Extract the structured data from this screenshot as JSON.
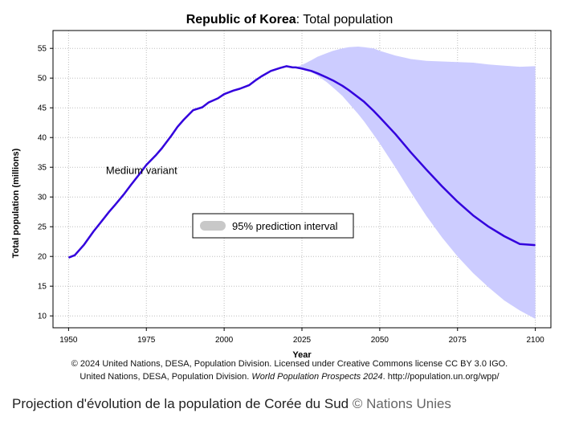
{
  "chart_data": {
    "type": "line",
    "title": {
      "country": "Republic of Korea",
      "rest": ": Total population"
    },
    "xlabel": "Year",
    "ylabel": "Total population (millions)",
    "xlim": [
      1945,
      2105
    ],
    "ylim": [
      8,
      58
    ],
    "x_ticks": [
      1950,
      1975,
      2000,
      2025,
      2050,
      2075,
      2100
    ],
    "y_ticks": [
      10,
      15,
      20,
      25,
      30,
      35,
      40,
      45,
      50,
      55
    ],
    "grid": true,
    "annotations": {
      "series_label": "Medium variant",
      "legend_label": "95% prediction interval"
    },
    "colors": {
      "line": "#3300dd",
      "band": "#ccccff",
      "legend_swatch": "#c8c8c8",
      "grid": "#bdbdbd"
    },
    "series": [
      {
        "name": "Medium variant",
        "x": [
          1950,
          1952,
          1955,
          1958,
          1960,
          1963,
          1965,
          1968,
          1970,
          1973,
          1975,
          1978,
          1980,
          1983,
          1985,
          1987,
          1990,
          1993,
          1995,
          1998,
          2000,
          2003,
          2005,
          2008,
          2010,
          2012,
          2015,
          2018,
          2020,
          2022,
          2023,
          2025,
          2028,
          2030,
          2033,
          2035,
          2038,
          2040,
          2043,
          2045,
          2048,
          2050,
          2055,
          2060,
          2065,
          2070,
          2075,
          2080,
          2085,
          2090,
          2095,
          2100
        ],
        "y": [
          19.8,
          20.2,
          22.0,
          24.2,
          25.5,
          27.5,
          28.7,
          30.6,
          32.0,
          34.0,
          35.4,
          37.0,
          38.2,
          40.3,
          41.8,
          43.0,
          44.6,
          45.1,
          45.9,
          46.6,
          47.3,
          47.9,
          48.2,
          48.8,
          49.6,
          50.3,
          51.2,
          51.7,
          52.0,
          51.8,
          51.8,
          51.6,
          51.2,
          50.8,
          50.1,
          49.6,
          48.7,
          48.0,
          46.8,
          46.0,
          44.5,
          43.4,
          40.6,
          37.5,
          34.6,
          31.8,
          29.2,
          26.9,
          25.0,
          23.4,
          22.1,
          21.9
        ]
      },
      {
        "name": "95% prediction interval",
        "x": [
          2023,
          2025,
          2028,
          2030,
          2033,
          2035,
          2038,
          2040,
          2043,
          2045,
          2048,
          2050,
          2055,
          2060,
          2065,
          2070,
          2075,
          2080,
          2085,
          2090,
          2095,
          2100
        ],
        "y_low": [
          51.8,
          51.6,
          51.0,
          50.4,
          49.3,
          48.4,
          47.0,
          45.8,
          44.0,
          42.7,
          40.5,
          39.0,
          35.0,
          30.8,
          26.8,
          23.2,
          20.0,
          17.2,
          14.8,
          12.6,
          10.9,
          9.5
        ],
        "y_high": [
          51.8,
          52.2,
          53.0,
          53.6,
          54.2,
          54.6,
          55.0,
          55.2,
          55.3,
          55.2,
          55.0,
          54.6,
          53.8,
          53.2,
          52.9,
          52.8,
          52.7,
          52.6,
          52.3,
          52.1,
          51.9,
          52.0
        ]
      }
    ]
  },
  "footnote": {
    "line1": "© 2024 United Nations, DESA, Population Division. Licensed under Creative Commons license CC BY 3.0 IGO.",
    "line2_prefix": "United Nations, DESA, Population Division. ",
    "line2_italic": "World Population Prospects 2024",
    "line2_suffix": ". http://population.un.org/wpp/"
  },
  "caption": {
    "text": "Projection d'évolution de la population de Corée du Sud",
    "credit": "© Nations Unies"
  }
}
